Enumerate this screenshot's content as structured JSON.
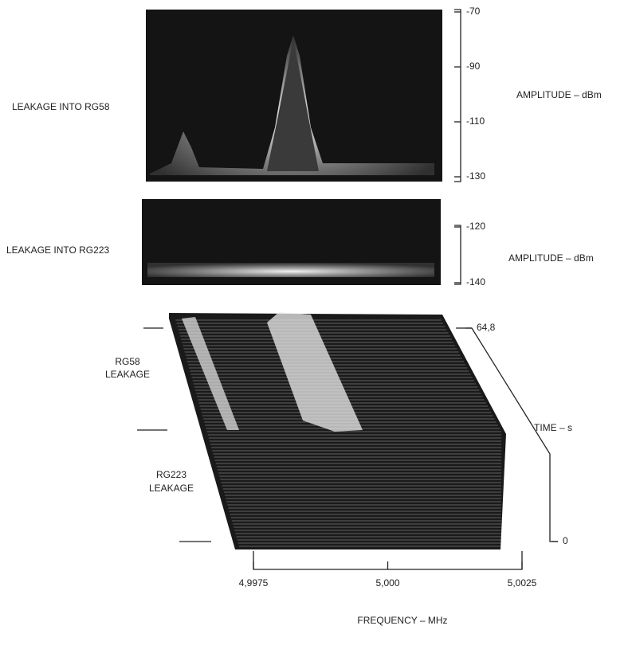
{
  "top_panel": {
    "label": "LEAKAGE INTO RG58",
    "axis_title": "AMPLITUDE – dBm",
    "ylim": [
      -130,
      -70
    ],
    "yticks": [
      -70,
      -90,
      -110,
      -130
    ]
  },
  "middle_panel": {
    "label": "LEAKAGE INTO RG223",
    "axis_title": "AMPLITUDE – dBm",
    "ylim": [
      -140,
      -120
    ],
    "yticks": [
      -120,
      -140
    ]
  },
  "waterfall": {
    "labels": [
      [
        "RG58",
        "LEAKAGE"
      ],
      [
        "RG223",
        "LEAKAGE"
      ]
    ],
    "time_title": "TIME – s",
    "time_lim": [
      0,
      64.8
    ],
    "time_ticks": [
      {
        "value": 64.8,
        "label": "64,8"
      },
      0
    ],
    "freq_title": "FREQUENCY – MHz",
    "freq_lim": [
      4.9975,
      5.0025
    ],
    "freq_ticks": [
      {
        "value": 4.9975,
        "label": "4,9975"
      },
      {
        "value": 5.0,
        "label": "5,000"
      },
      {
        "value": 5.0025,
        "label": "5,0025"
      }
    ]
  }
}
